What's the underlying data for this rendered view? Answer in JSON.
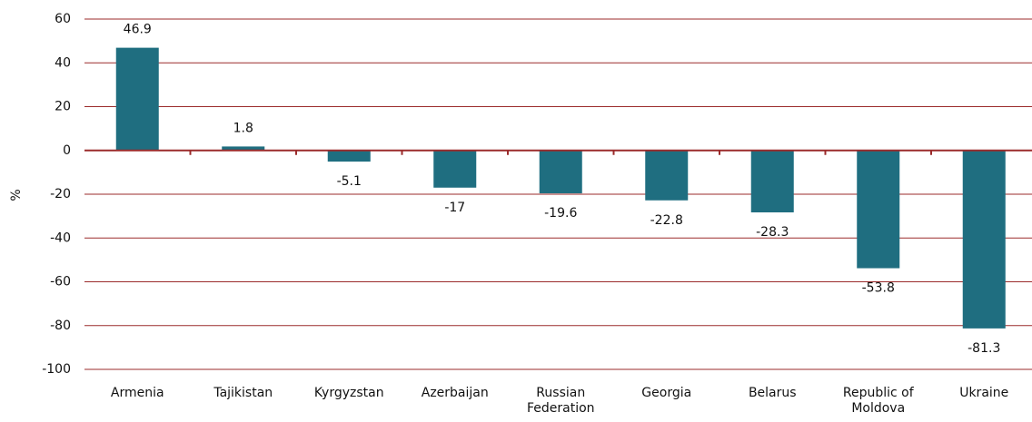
{
  "chart_data": {
    "type": "bar",
    "y_label": "%",
    "categories": [
      "Armenia",
      "Tajikistan",
      "Kyrgyzstan",
      "Azerbaijan",
      "Russian Federation",
      "Georgia",
      "Belarus",
      "Republic of Moldova",
      "Ukraine"
    ],
    "values": [
      46.9,
      1.8,
      -5.1,
      -17,
      -19.6,
      -22.8,
      -28.3,
      -53.8,
      -81.3
    ],
    "color": "#1f6e80",
    "ylim": [
      -100,
      60
    ],
    "yticks": [
      -100,
      -80,
      -60,
      -40,
      -20,
      0,
      20,
      40,
      60
    ],
    "grid": true
  }
}
